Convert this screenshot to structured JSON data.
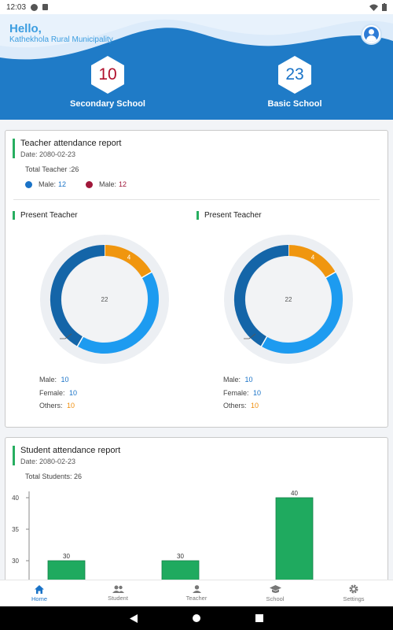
{
  "status_bar": {
    "time": "12:03"
  },
  "header": {
    "greeting": "Hello,",
    "organization": "Kathekhola Rural Municipality",
    "stats": [
      {
        "value": "10",
        "label": "Secondary School",
        "color": "#b0102c"
      },
      {
        "value": "23",
        "label": "Basic School",
        "color": "#1a73c7"
      }
    ]
  },
  "teacher_report": {
    "title": "Teacher attendance report",
    "date": "Date: 2080-02-23",
    "total": "Total Teacher :26",
    "legend": [
      {
        "label": "Male:",
        "value": "12",
        "color": "#1a73c7"
      },
      {
        "label": "Male:",
        "value": "12",
        "color": "#a0183a"
      }
    ],
    "panels": [
      {
        "title": "Present Teacher",
        "center": "22",
        "segments": [
          {
            "label": "4",
            "value": 4,
            "color": "#f0960f"
          },
          {
            "label": "",
            "value": 10,
            "color": "#1d9bf0"
          },
          {
            "label": "",
            "value": 10,
            "color": "#1465a8"
          }
        ],
        "stats": [
          {
            "label": "Male:",
            "value": "10"
          },
          {
            "label": "Female:",
            "value": "10"
          },
          {
            "label": "Others:",
            "value": "10"
          }
        ]
      },
      {
        "title": "Present Teacher",
        "center": "22",
        "segments": [
          {
            "label": "4",
            "value": 4,
            "color": "#f0960f"
          },
          {
            "label": "",
            "value": 10,
            "color": "#1d9bf0"
          },
          {
            "label": "",
            "value": 10,
            "color": "#1465a8"
          }
        ],
        "stats": [
          {
            "label": "Male:",
            "value": "10"
          },
          {
            "label": "Female:",
            "value": "10"
          },
          {
            "label": "Others:",
            "value": "10"
          }
        ]
      }
    ]
  },
  "student_report": {
    "title": "Student attendance report",
    "date": "Date: 2080-02-23",
    "total": "Total Students: 26"
  },
  "chart_data": {
    "type": "bar",
    "categories": [
      "",
      "",
      ""
    ],
    "values": [
      30,
      30,
      40
    ],
    "ylim": [
      27,
      42
    ],
    "yticks": [
      30,
      35,
      40
    ],
    "bar_color": "#1faa5f"
  },
  "bottom_nav": [
    {
      "label": "Home",
      "icon": "home-icon",
      "active": true
    },
    {
      "label": "Student",
      "icon": "people-icon",
      "active": false
    },
    {
      "label": "Teacher",
      "icon": "person-icon",
      "active": false
    },
    {
      "label": "School",
      "icon": "school-icon",
      "active": false
    },
    {
      "label": "Settings",
      "icon": "gear-icon",
      "active": false
    }
  ]
}
